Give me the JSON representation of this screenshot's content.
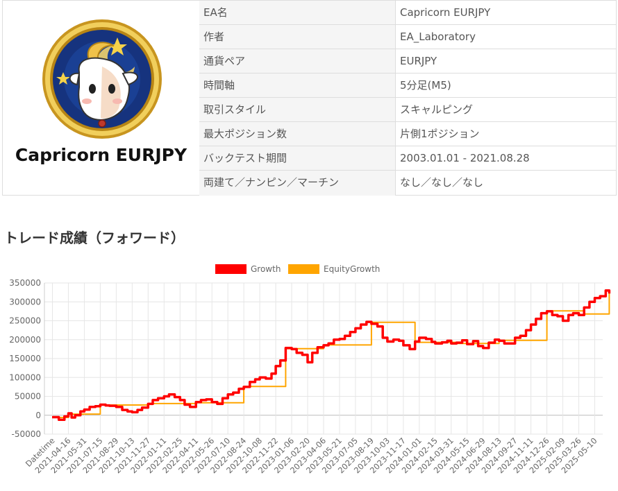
{
  "logo": {
    "title": "Capricorn EURJPY"
  },
  "info_rows": [
    {
      "key": "EA名",
      "value": "Capricorn EURJPY"
    },
    {
      "key": "作者",
      "value": "EA_Laboratory"
    },
    {
      "key": "通貨ペア",
      "value": "EURJPY"
    },
    {
      "key": "時間軸",
      "value": "5分足(M5)"
    },
    {
      "key": "取引スタイル",
      "value": "スキャルピング"
    },
    {
      "key": "最大ポジション数",
      "value": "片側1ポジション"
    },
    {
      "key": "バックテスト期間",
      "value": "2003.01.01 - 2021.08.28"
    },
    {
      "key": "両建て／ナンピン／マーチン",
      "value": "なし／なし／なし"
    }
  ],
  "section": {
    "heading": "トレード成績（フォワード）"
  },
  "colors": {
    "growth": "#ff0000",
    "equity": "#ffa500",
    "grid": "#e6e6e6",
    "navy": "#1f3a8a",
    "gold": "#d8a72a"
  },
  "chart_data": {
    "type": "line",
    "legend": [
      "Growth",
      "EquityGrowth"
    ],
    "legend_position": "top",
    "grid": true,
    "ylim": [
      -50000,
      350000
    ],
    "y_ticks": [
      350000,
      300000,
      250000,
      200000,
      150000,
      100000,
      50000,
      0,
      -50000
    ],
    "x_ticks": [
      "Datetime",
      "2021-04-16",
      "2021-05-31",
      "2021-07-15",
      "2021-08-29",
      "2021-10-13",
      "2021-11-27",
      "2022-01-11",
      "2022-02-25",
      "2022-04-11",
      "2022-05-26",
      "2022-07-10",
      "2022-08-24",
      "2022-10-08",
      "2022-11-22",
      "2023-01-06",
      "2023-02-20",
      "2023-04-06",
      "2023-05-21",
      "2023-07-05",
      "2023-08-19",
      "2023-10-03",
      "2023-11-17",
      "2024-01-01",
      "2024-02-15",
      "2024-03-31",
      "2024-05-15",
      "2024-06-29",
      "2024-08-13",
      "2024-09-27",
      "2024-11-11",
      "2024-12-26",
      "2025-02-09",
      "2025-03-26",
      "2025-05-10"
    ],
    "series": [
      {
        "name": "Growth",
        "x": [
          "2021-03-01",
          "2021-03-20",
          "2021-04-05",
          "2021-04-16",
          "2021-04-25",
          "2021-05-05",
          "2021-05-20",
          "2021-05-31",
          "2021-06-15",
          "2021-07-01",
          "2021-07-15",
          "2021-07-30",
          "2021-08-10",
          "2021-08-29",
          "2021-09-15",
          "2021-09-30",
          "2021-10-13",
          "2021-10-28",
          "2021-11-10",
          "2021-11-27",
          "2021-12-10",
          "2021-12-25",
          "2022-01-11",
          "2022-01-25",
          "2022-02-10",
          "2022-02-25",
          "2022-03-10",
          "2022-03-25",
          "2022-04-11",
          "2022-04-25",
          "2022-05-10",
          "2022-05-26",
          "2022-06-10",
          "2022-06-25",
          "2022-07-10",
          "2022-07-25",
          "2022-08-10",
          "2022-08-24",
          "2022-09-10",
          "2022-09-25",
          "2022-10-08",
          "2022-10-25",
          "2022-11-10",
          "2022-11-22",
          "2022-12-05",
          "2022-12-20",
          "2023-01-06",
          "2023-01-20",
          "2023-02-05",
          "2023-02-20",
          "2023-03-05",
          "2023-03-20",
          "2023-04-06",
          "2023-04-20",
          "2023-05-05",
          "2023-05-21",
          "2023-06-05",
          "2023-06-20",
          "2023-07-05",
          "2023-07-20",
          "2023-08-05",
          "2023-08-19",
          "2023-09-05",
          "2023-09-20",
          "2023-10-03",
          "2023-10-20",
          "2023-11-05",
          "2023-11-17",
          "2023-12-05",
          "2023-12-20",
          "2024-01-01",
          "2024-01-20",
          "2024-02-05",
          "2024-02-15",
          "2024-03-05",
          "2024-03-20",
          "2024-03-31",
          "2024-04-15",
          "2024-05-01",
          "2024-05-15",
          "2024-06-01",
          "2024-06-15",
          "2024-06-29",
          "2024-07-15",
          "2024-08-01",
          "2024-08-13",
          "2024-08-28",
          "2024-09-10",
          "2024-09-27",
          "2024-10-12",
          "2024-10-28",
          "2024-11-11",
          "2024-11-25",
          "2024-12-10",
          "2024-12-26",
          "2025-01-10",
          "2025-01-25",
          "2025-02-09",
          "2025-02-25",
          "2025-03-10",
          "2025-03-26",
          "2025-04-10",
          "2025-04-25",
          "2025-05-10",
          "2025-05-25",
          "2025-06-10",
          "2025-06-20"
        ],
        "values": [
          -5000,
          -12000,
          -3000,
          5000,
          -6000,
          0,
          10000,
          15000,
          22000,
          24000,
          28000,
          26000,
          25000,
          22000,
          14000,
          10000,
          8000,
          14000,
          20000,
          30000,
          40000,
          45000,
          50000,
          55000,
          48000,
          40000,
          28000,
          22000,
          35000,
          40000,
          42000,
          35000,
          30000,
          45000,
          55000,
          60000,
          70000,
          75000,
          88000,
          95000,
          100000,
          97000,
          110000,
          130000,
          145000,
          178000,
          175000,
          165000,
          160000,
          140000,
          165000,
          180000,
          185000,
          190000,
          200000,
          202000,
          210000,
          220000,
          230000,
          240000,
          247000,
          242000,
          235000,
          205000,
          195000,
          200000,
          197000,
          185000,
          175000,
          195000,
          205000,
          202000,
          194000,
          190000,
          193000,
          197000,
          190000,
          192000,
          198000,
          188000,
          196000,
          183000,
          178000,
          192000,
          200000,
          197000,
          190000,
          190000,
          205000,
          210000,
          225000,
          240000,
          255000,
          270000,
          275000,
          265000,
          262000,
          250000,
          265000,
          270000,
          265000,
          285000,
          300000,
          310000,
          315000,
          330000,
          322000
        ]
      },
      {
        "name": "EquityGrowth",
        "x": [
          "2021-03-01",
          "2021-04-16",
          "2021-07-15",
          "2021-11-27",
          "2022-04-11",
          "2022-08-24",
          "2022-12-20",
          "2023-04-06",
          "2023-08-19",
          "2023-12-20",
          "2024-04-15",
          "2024-08-13",
          "2024-12-26",
          "2025-04-10",
          "2025-06-20"
        ],
        "values": [
          -6000,
          3000,
          27000,
          31000,
          33000,
          76000,
          176000,
          186000,
          246000,
          193000,
          190000,
          198000,
          276000,
          268000,
          326000
        ]
      }
    ]
  }
}
